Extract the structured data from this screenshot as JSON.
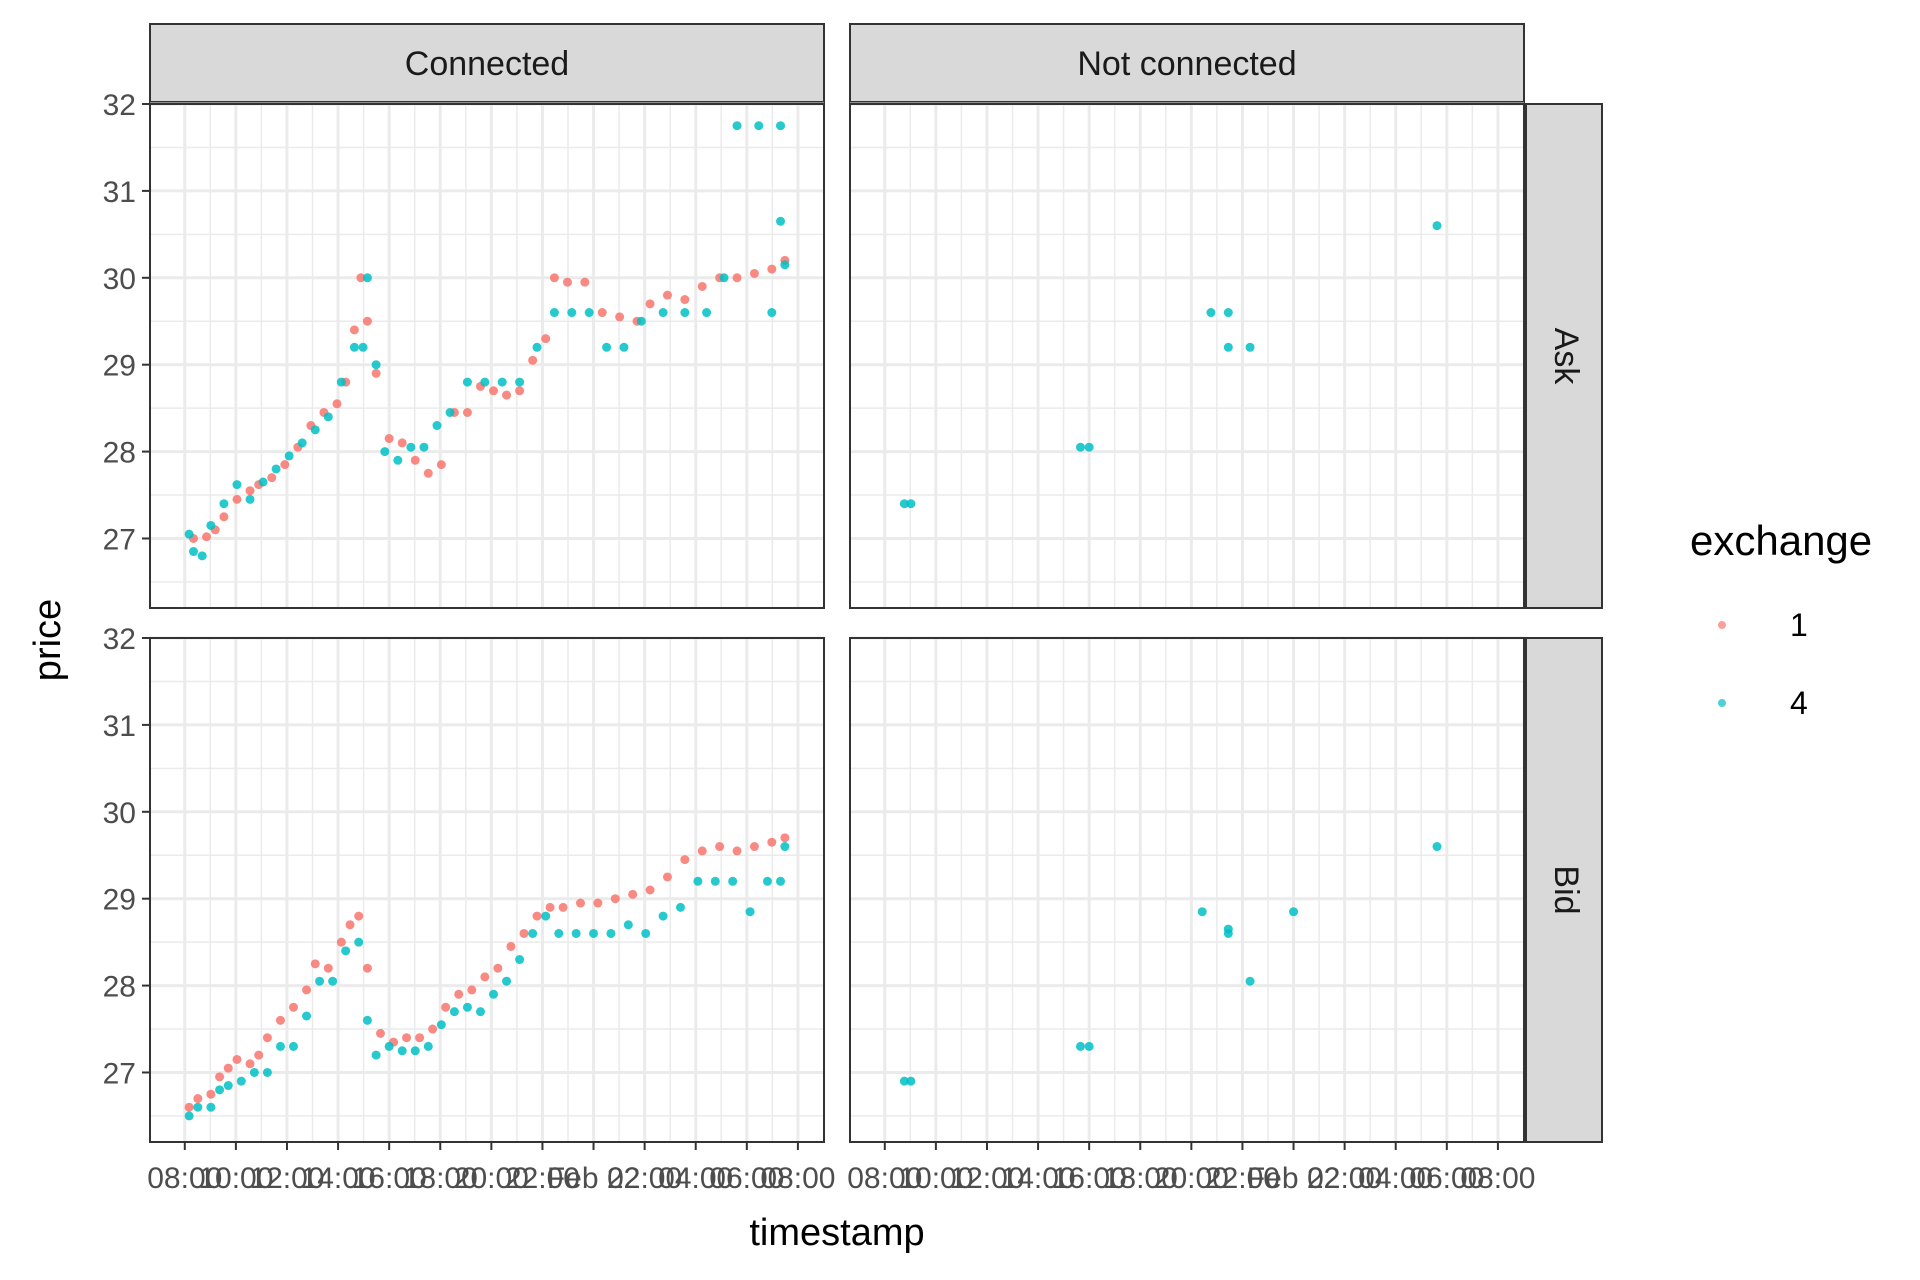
{
  "chart_data": {
    "type": "scatter",
    "xlabel": "timestamp",
    "ylabel": "price",
    "ylim": [
      26.2,
      32
    ],
    "y_ticks": [
      27,
      28,
      29,
      30,
      31,
      32
    ],
    "x_tick_labels": [
      "08:00",
      "10:00",
      "12:00",
      "14:00",
      "16:00",
      "18:00",
      "20:00",
      "22:00",
      "Feb 22",
      "02:00",
      "04:00",
      "06:00",
      "08:00"
    ],
    "grid": true,
    "facet_columns": [
      "Connected",
      "Not connected"
    ],
    "facet_rows": [
      "Ask",
      "Bid"
    ],
    "legend": {
      "title": "exchange",
      "position": "right",
      "entries": [
        {
          "label": "1",
          "color": "#F8766D"
        },
        {
          "label": "4",
          "color": "#00BFC4"
        }
      ]
    },
    "panels": [
      {
        "column": "Connected",
        "row": "Ask",
        "series": [
          {
            "name": "1",
            "points": [
              [
                0.5,
                27.0
              ],
              [
                0.8,
                27.02
              ],
              [
                1.0,
                27.1
              ],
              [
                1.2,
                27.25
              ],
              [
                1.5,
                27.45
              ],
              [
                1.8,
                27.55
              ],
              [
                2.0,
                27.62
              ],
              [
                2.3,
                27.7
              ],
              [
                2.6,
                27.85
              ],
              [
                2.9,
                28.05
              ],
              [
                3.2,
                28.3
              ],
              [
                3.5,
                28.45
              ],
              [
                3.8,
                28.55
              ],
              [
                4.0,
                28.8
              ],
              [
                4.2,
                29.4
              ],
              [
                4.35,
                30.0
              ],
              [
                4.5,
                29.5
              ],
              [
                4.7,
                28.9
              ],
              [
                5.0,
                28.15
              ],
              [
                5.3,
                28.1
              ],
              [
                5.6,
                27.9
              ],
              [
                5.9,
                27.75
              ],
              [
                6.2,
                27.85
              ],
              [
                6.5,
                28.45
              ],
              [
                6.8,
                28.45
              ],
              [
                7.1,
                28.75
              ],
              [
                7.4,
                28.7
              ],
              [
                7.7,
                28.65
              ],
              [
                8.0,
                28.7
              ],
              [
                8.3,
                29.05
              ],
              [
                8.6,
                29.3
              ],
              [
                8.8,
                30.0
              ],
              [
                9.1,
                29.95
              ],
              [
                9.5,
                29.95
              ],
              [
                9.9,
                29.6
              ],
              [
                10.3,
                29.55
              ],
              [
                10.7,
                29.5
              ],
              [
                11.0,
                29.7
              ],
              [
                11.4,
                29.8
              ],
              [
                11.8,
                29.75
              ],
              [
                12.2,
                29.9
              ],
              [
                12.6,
                30.0
              ],
              [
                13.0,
                30.0
              ],
              [
                13.4,
                30.05
              ],
              [
                13.8,
                30.1
              ],
              [
                14.1,
                30.2
              ]
            ]
          },
          {
            "name": "4",
            "points": [
              [
                0.4,
                27.05
              ],
              [
                0.5,
                26.85
              ],
              [
                0.7,
                26.8
              ],
              [
                0.9,
                27.15
              ],
              [
                1.2,
                27.4
              ],
              [
                1.5,
                27.62
              ],
              [
                1.8,
                27.45
              ],
              [
                2.1,
                27.65
              ],
              [
                2.4,
                27.8
              ],
              [
                2.7,
                27.95
              ],
              [
                3.0,
                28.1
              ],
              [
                3.3,
                28.25
              ],
              [
                3.6,
                28.4
              ],
              [
                3.9,
                28.8
              ],
              [
                4.2,
                29.2
              ],
              [
                4.4,
                29.2
              ],
              [
                4.5,
                30.0
              ],
              [
                4.7,
                29.0
              ],
              [
                4.9,
                28.0
              ],
              [
                5.2,
                27.9
              ],
              [
                5.5,
                28.05
              ],
              [
                5.8,
                28.05
              ],
              [
                6.1,
                28.3
              ],
              [
                6.4,
                28.45
              ],
              [
                6.8,
                28.8
              ],
              [
                7.2,
                28.8
              ],
              [
                7.6,
                28.8
              ],
              [
                8.0,
                28.8
              ],
              [
                8.4,
                29.2
              ],
              [
                8.8,
                29.6
              ],
              [
                9.2,
                29.6
              ],
              [
                9.6,
                29.6
              ],
              [
                10.0,
                29.2
              ],
              [
                10.4,
                29.2
              ],
              [
                10.8,
                29.5
              ],
              [
                11.3,
                29.6
              ],
              [
                11.8,
                29.6
              ],
              [
                12.3,
                29.6
              ],
              [
                12.7,
                30.0
              ],
              [
                13.0,
                31.75
              ],
              [
                13.5,
                31.75
              ],
              [
                14.0,
                31.75
              ],
              [
                13.8,
                29.6
              ],
              [
                14.0,
                30.65
              ],
              [
                14.1,
                30.15
              ]
            ]
          }
        ]
      },
      {
        "column": "Not connected",
        "row": "Ask",
        "series": [
          {
            "name": "1",
            "points": []
          },
          {
            "name": "4",
            "points": [
              [
                0.75,
                27.4
              ],
              [
                0.9,
                27.4
              ],
              [
                4.8,
                28.05
              ],
              [
                5.0,
                28.05
              ],
              [
                7.8,
                29.6
              ],
              [
                8.2,
                29.6
              ],
              [
                8.2,
                29.2
              ],
              [
                8.7,
                29.2
              ],
              [
                13.0,
                30.6
              ]
            ]
          }
        ]
      },
      {
        "column": "Connected",
        "row": "Bid",
        "series": [
          {
            "name": "1",
            "points": [
              [
                0.4,
                26.6
              ],
              [
                0.6,
                26.7
              ],
              [
                0.9,
                26.75
              ],
              [
                1.1,
                26.95
              ],
              [
                1.3,
                27.05
              ],
              [
                1.5,
                27.15
              ],
              [
                1.8,
                27.1
              ],
              [
                2.0,
                27.2
              ],
              [
                2.2,
                27.4
              ],
              [
                2.5,
                27.6
              ],
              [
                2.8,
                27.75
              ],
              [
                3.1,
                27.95
              ],
              [
                3.3,
                28.25
              ],
              [
                3.6,
                28.2
              ],
              [
                3.9,
                28.5
              ],
              [
                4.1,
                28.7
              ],
              [
                4.3,
                28.8
              ],
              [
                4.5,
                28.2
              ],
              [
                4.8,
                27.45
              ],
              [
                5.1,
                27.35
              ],
              [
                5.4,
                27.4
              ],
              [
                5.7,
                27.4
              ],
              [
                6.0,
                27.5
              ],
              [
                6.3,
                27.75
              ],
              [
                6.6,
                27.9
              ],
              [
                6.9,
                27.95
              ],
              [
                7.2,
                28.1
              ],
              [
                7.5,
                28.2
              ],
              [
                7.8,
                28.45
              ],
              [
                8.1,
                28.6
              ],
              [
                8.4,
                28.8
              ],
              [
                8.7,
                28.9
              ],
              [
                9.0,
                28.9
              ],
              [
                9.4,
                28.95
              ],
              [
                9.8,
                28.95
              ],
              [
                10.2,
                29.0
              ],
              [
                10.6,
                29.05
              ],
              [
                11.0,
                29.1
              ],
              [
                11.4,
                29.25
              ],
              [
                11.8,
                29.45
              ],
              [
                12.2,
                29.55
              ],
              [
                12.6,
                29.6
              ],
              [
                13.0,
                29.55
              ],
              [
                13.4,
                29.6
              ],
              [
                13.8,
                29.65
              ],
              [
                14.1,
                29.7
              ]
            ]
          },
          {
            "name": "4",
            "points": [
              [
                0.4,
                26.5
              ],
              [
                0.6,
                26.6
              ],
              [
                0.9,
                26.6
              ],
              [
                1.1,
                26.8
              ],
              [
                1.3,
                26.85
              ],
              [
                1.6,
                26.9
              ],
              [
                1.9,
                27.0
              ],
              [
                2.2,
                27.0
              ],
              [
                2.5,
                27.3
              ],
              [
                2.8,
                27.3
              ],
              [
                3.1,
                27.65
              ],
              [
                3.4,
                28.05
              ],
              [
                3.7,
                28.05
              ],
              [
                4.0,
                28.4
              ],
              [
                4.3,
                28.5
              ],
              [
                4.5,
                27.6
              ],
              [
                4.7,
                27.2
              ],
              [
                5.0,
                27.3
              ],
              [
                5.3,
                27.25
              ],
              [
                5.6,
                27.25
              ],
              [
                5.9,
                27.3
              ],
              [
                6.2,
                27.55
              ],
              [
                6.5,
                27.7
              ],
              [
                6.8,
                27.75
              ],
              [
                7.1,
                27.7
              ],
              [
                7.4,
                27.9
              ],
              [
                7.7,
                28.05
              ],
              [
                8.0,
                28.3
              ],
              [
                8.3,
                28.6
              ],
              [
                8.6,
                28.8
              ],
              [
                8.9,
                28.6
              ],
              [
                9.3,
                28.6
              ],
              [
                9.7,
                28.6
              ],
              [
                10.1,
                28.6
              ],
              [
                10.5,
                28.7
              ],
              [
                10.9,
                28.6
              ],
              [
                11.3,
                28.8
              ],
              [
                11.7,
                28.9
              ],
              [
                12.1,
                29.2
              ],
              [
                12.5,
                29.2
              ],
              [
                12.9,
                29.2
              ],
              [
                13.3,
                28.85
              ],
              [
                13.7,
                29.2
              ],
              [
                14.0,
                29.2
              ],
              [
                14.1,
                29.6
              ]
            ]
          }
        ]
      },
      {
        "column": "Not connected",
        "row": "Bid",
        "series": [
          {
            "name": "1",
            "points": []
          },
          {
            "name": "4",
            "points": [
              [
                0.75,
                26.9
              ],
              [
                0.9,
                26.9
              ],
              [
                4.8,
                27.3
              ],
              [
                5.0,
                27.3
              ],
              [
                7.6,
                28.85
              ],
              [
                8.2,
                28.65
              ],
              [
                8.2,
                28.6
              ],
              [
                8.7,
                28.05
              ],
              [
                9.7,
                28.85
              ],
              [
                13.0,
                29.6
              ]
            ]
          }
        ]
      }
    ]
  }
}
